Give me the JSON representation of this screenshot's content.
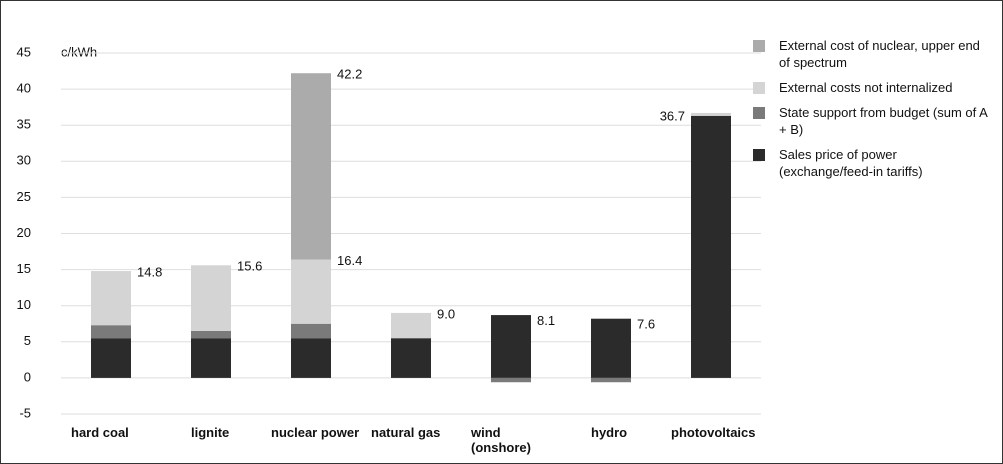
{
  "chart_data": {
    "type": "bar",
    "stacked": true,
    "y_label": "c/kWh",
    "categories": [
      "hard coal",
      "lignite",
      "nuclear power",
      "natural gas",
      "wind (onshore)",
      "hydro",
      "photovoltaics"
    ],
    "series": [
      {
        "name": "Sales price of power (exchange/feed-in tariffs)",
        "color": "#2b2b2b",
        "values": [
          5.5,
          5.5,
          5.5,
          5.5,
          8.7,
          8.2,
          36.3
        ]
      },
      {
        "name": "State support from budget (sum of A + B)",
        "color": "#7a7a7a",
        "values": [
          1.8,
          1.0,
          2.0,
          0,
          -0.6,
          -0.6,
          0
        ]
      },
      {
        "name": "External costs not internalized",
        "color": "#d4d4d4",
        "values": [
          7.5,
          9.1,
          8.9,
          3.5,
          0,
          0,
          0.4
        ]
      },
      {
        "name": "External cost of nuclear, upper end of spectrum",
        "color": "#ababab",
        "values": [
          0,
          0,
          25.8,
          0,
          0,
          0,
          0
        ]
      }
    ],
    "annotations": [
      {
        "text": "14.8",
        "x": "hard coal",
        "y": 14.8
      },
      {
        "text": "15.6",
        "x": "lignite",
        "y": 15.6
      },
      {
        "text": "16.4",
        "x": "nuclear power",
        "y": 16.4
      },
      {
        "text": "42.2",
        "x": "nuclear power",
        "y": 42.2
      },
      {
        "text": "9.0",
        "x": "natural gas",
        "y": 9.0
      },
      {
        "text": "8.1",
        "x": "wind (onshore)",
        "y": 8.1
      },
      {
        "text": "7.6",
        "x": "hydro",
        "y": 7.6
      },
      {
        "text": "36.7",
        "x": "photovoltaics",
        "y": 36.7
      }
    ],
    "ylim": [
      -5,
      45
    ],
    "yticks": [
      -5,
      0,
      5,
      10,
      15,
      20,
      25,
      30,
      35,
      40,
      45
    ],
    "grid": true
  }
}
